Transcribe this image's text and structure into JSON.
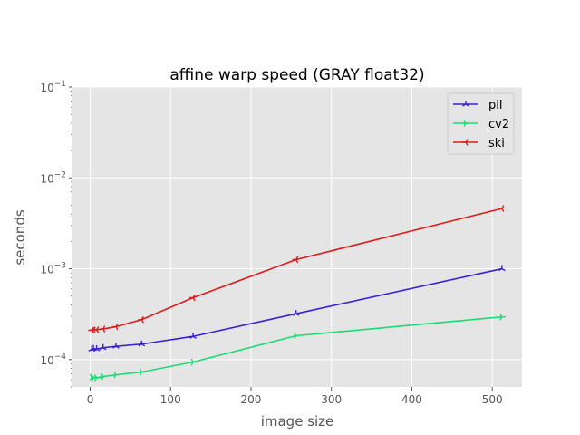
{
  "chart_data": {
    "type": "line",
    "title": "affine warp speed (GRAY float32)",
    "xlabel": "image size",
    "ylabel": "seconds",
    "xlim": [
      -22,
      537
    ],
    "ylim": [
      5e-05,
      0.1
    ],
    "yscale": "log",
    "grid": true,
    "legend_position": "top-right",
    "x_ticks": [
      0,
      100,
      200,
      300,
      400,
      500
    ],
    "x_tick_labels": [
      "0",
      "100",
      "200",
      "300",
      "400",
      "500"
    ],
    "y_ticks": [
      0.0001,
      0.001,
      0.01,
      0.1
    ],
    "y_tick_labels": [
      {
        "base": "10",
        "exp": "−4"
      },
      {
        "base": "10",
        "exp": "−3"
      },
      {
        "base": "10",
        "exp": "−2"
      },
      {
        "base": "10",
        "exp": "−1"
      }
    ],
    "x": [
      2,
      4,
      8,
      16,
      32,
      64,
      128,
      256,
      512
    ],
    "series": [
      {
        "name": "pil",
        "color": "#3c1fd6",
        "marker": "tri_up",
        "values": [
          0.00013,
          0.000132,
          0.000131,
          0.000135,
          0.00014,
          0.000148,
          0.00018,
          0.00032,
          0.001
        ]
      },
      {
        "name": "cv2",
        "color": "#19dc73",
        "marker": "tri_right",
        "values": [
          6.4e-05,
          6.3e-05,
          6.3e-05,
          6.5e-05,
          6.8e-05,
          7.3e-05,
          9.4e-05,
          0.000183,
          0.000295
        ]
      },
      {
        "name": "ski",
        "color": "#dc1c1c",
        "marker": "tri_left",
        "values": [
          0.00021,
          0.000212,
          0.000213,
          0.000217,
          0.00023,
          0.000275,
          0.00048,
          0.00126,
          0.0046
        ]
      }
    ]
  }
}
